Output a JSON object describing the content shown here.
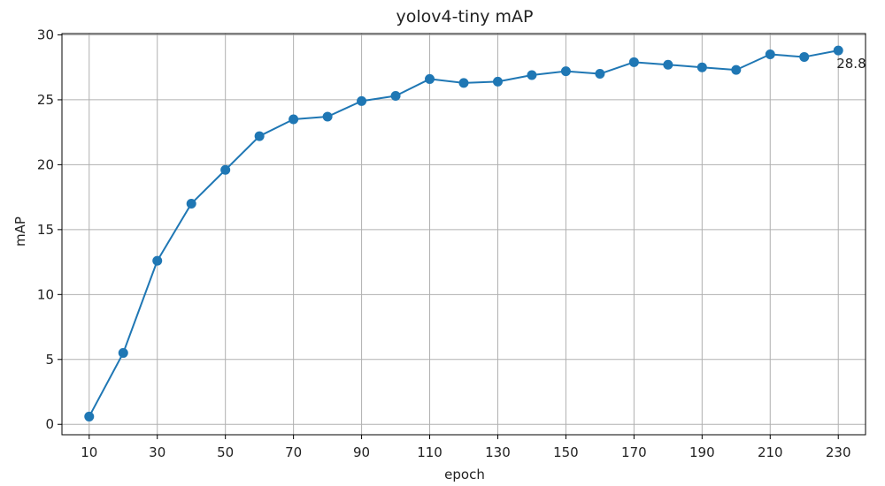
{
  "chart_data": {
    "type": "line",
    "title": "yolov4-tiny mAP",
    "xlabel": "epoch",
    "ylabel": "mAP",
    "x": [
      10,
      20,
      30,
      40,
      50,
      60,
      70,
      80,
      90,
      100,
      110,
      120,
      130,
      140,
      150,
      160,
      170,
      180,
      190,
      200,
      210,
      220,
      230
    ],
    "series": [
      {
        "values": [
          0.6,
          5.5,
          12.6,
          17.0,
          19.6,
          22.2,
          23.5,
          23.7,
          24.9,
          25.3,
          26.6,
          26.3,
          26.4,
          26.9,
          27.2,
          27.0,
          27.9,
          27.7,
          27.5,
          27.3,
          28.5,
          28.3,
          28.8
        ],
        "color": "#1f77b4"
      }
    ],
    "xticks": [
      10,
      30,
      50,
      70,
      90,
      110,
      130,
      150,
      170,
      190,
      210,
      230
    ],
    "yticks": [
      0,
      5,
      10,
      15,
      20,
      25,
      30
    ],
    "xlim": [
      2,
      238
    ],
    "ylim": [
      -0.8,
      30.1
    ],
    "annotations": [
      {
        "x": 230,
        "y": 28.8,
        "text": "28.8"
      }
    ],
    "grid": true,
    "marker": "circle"
  }
}
